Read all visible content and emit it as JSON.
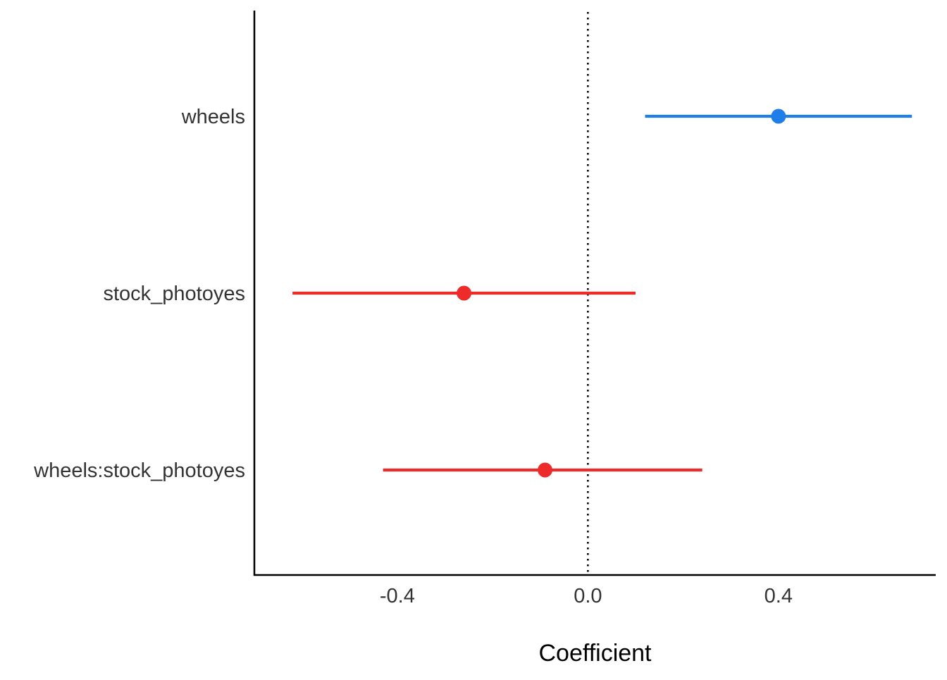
{
  "chart_data": {
    "type": "coefficient-plot",
    "title": "",
    "xlabel": "Coefficient",
    "ylabel": "",
    "xlim": [
      -0.7,
      0.73
    ],
    "x_ticks": [
      -0.4,
      0.0,
      0.4
    ],
    "x_tick_labels": [
      "-0.4",
      "0.0",
      "0.4"
    ],
    "reference_line": {
      "x": 0.0,
      "style": "dotted"
    },
    "grid": false,
    "legend": "none",
    "terms": [
      {
        "name": "wheels",
        "estimate": 0.4,
        "ci_low": 0.12,
        "ci_high": 0.68,
        "color": "#1f7ee8"
      },
      {
        "name": "stock_photoyes",
        "estimate": -0.26,
        "ci_low": -0.62,
        "ci_high": 0.1,
        "color": "#ee2b2b"
      },
      {
        "name": "wheels:stock_photoyes",
        "estimate": -0.09,
        "ci_low": -0.43,
        "ci_high": 0.24,
        "color": "#ee2b2b"
      }
    ]
  }
}
